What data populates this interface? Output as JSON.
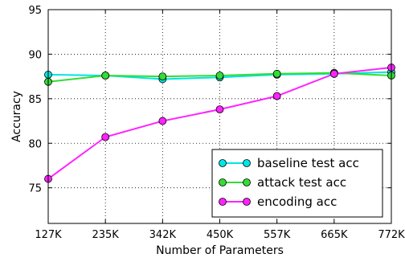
{
  "chart_data": {
    "type": "line",
    "title": "",
    "xlabel": "Number of Parameters",
    "ylabel": "Accuracy",
    "categories": [
      "127K",
      "235K",
      "342K",
      "450K",
      "557K",
      "665K",
      "772K"
    ],
    "ylim": [
      71,
      95
    ],
    "yticks": [
      75,
      80,
      85,
      90,
      95
    ],
    "grid": true,
    "grid_style": "dotted",
    "legend_position": "lower-right",
    "series": [
      {
        "name": "baseline test acc",
        "color": "#00e5e5",
        "values": [
          87.7,
          87.6,
          87.2,
          87.4,
          87.7,
          87.8,
          88.0
        ]
      },
      {
        "name": "attack test acc",
        "color": "#33dd33",
        "values": [
          86.9,
          87.6,
          87.5,
          87.6,
          87.8,
          87.9,
          87.6
        ]
      },
      {
        "name": "encoding acc",
        "color": "#ff22ff",
        "values": [
          76.0,
          80.7,
          82.5,
          83.8,
          85.3,
          87.8,
          88.5
        ]
      }
    ]
  }
}
